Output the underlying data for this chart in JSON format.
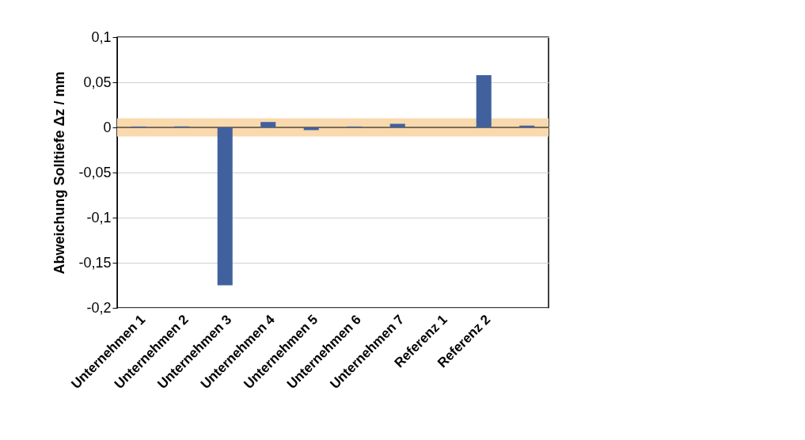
{
  "chart_data": {
    "type": "bar",
    "ylabel": "Abweichung Solltiefe Δz / mm",
    "categories": [
      "Unternehmen 1",
      "Unternehmen 2",
      "Unternehmen 3",
      "Unternehmen 4",
      "Unternehmen 5",
      "Unternehmen 6",
      "Unternehmen 7",
      "Referenz 1",
      "Referenz 2",
      null
    ],
    "values": [
      0.001,
      0.001,
      -0.175,
      0.006,
      -0.003,
      0.001,
      0.004,
      0,
      0.058,
      0.002
    ],
    "color": "#41619e",
    "ylim": [
      -0.2,
      0.1
    ],
    "yticks": [
      {
        "value": -0.2,
        "label": "-0,2"
      },
      {
        "value": -0.15,
        "label": "-0,15"
      },
      {
        "value": -0.1,
        "label": "-0,1"
      },
      {
        "value": -0.05,
        "label": "-0,05"
      },
      0,
      {
        "value": 0.05,
        "label": "0,05"
      },
      {
        "value": 0.1,
        "label": "0,1"
      }
    ],
    "grid": "y",
    "bands": [
      {
        "axis": "y",
        "from": -0.01,
        "to": 0.01,
        "color": "#f9d9ae"
      }
    ],
    "ref_lines": [
      {
        "axis": "y",
        "value": 0,
        "color": "#000000"
      }
    ]
  }
}
